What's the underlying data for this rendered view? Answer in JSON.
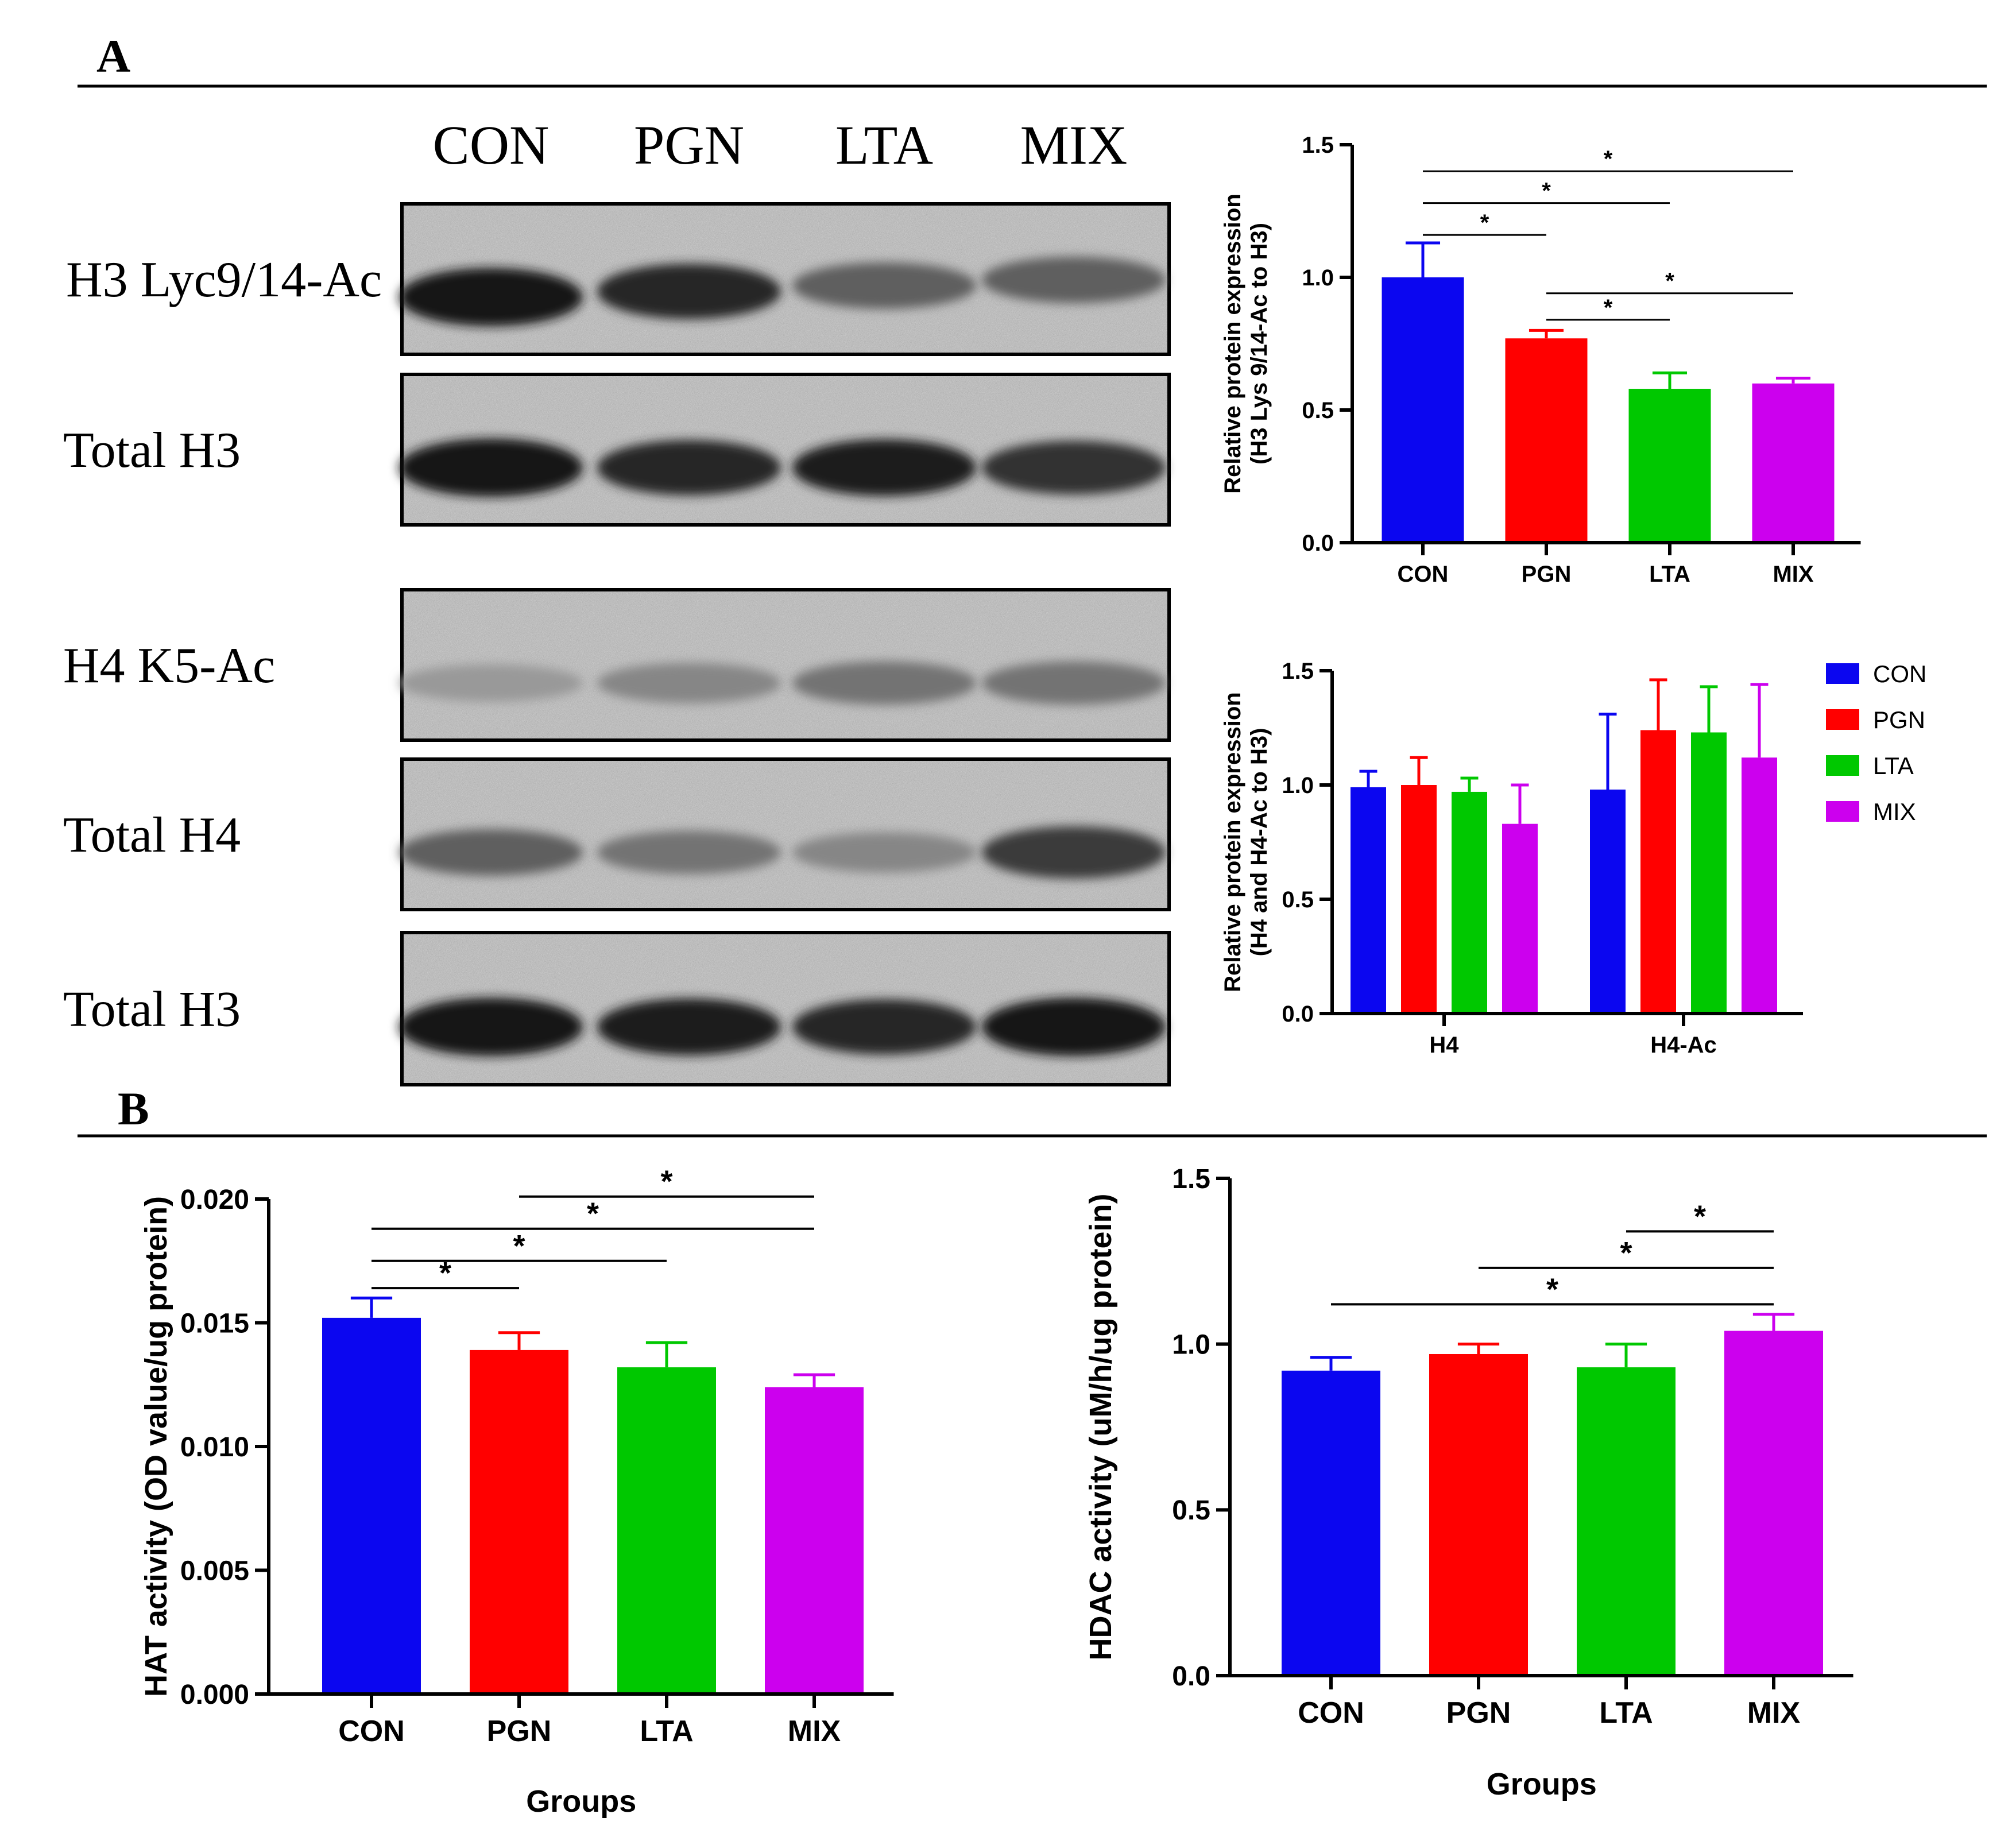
{
  "figure": {
    "panel_a_label": "A",
    "panel_b_label": "B"
  },
  "blot": {
    "lane_labels": [
      "CON",
      "PGN",
      "LTA",
      "MIX"
    ],
    "rows": [
      {
        "label": "H3 Lyc9/14-Ac",
        "intensity": [
          0.95,
          0.85,
          0.55,
          0.55
        ]
      },
      {
        "label": "Total H3",
        "intensity": [
          0.95,
          0.85,
          0.9,
          0.8
        ]
      },
      {
        "label": "H4 K5-Ac",
        "intensity": [
          0.25,
          0.35,
          0.45,
          0.45
        ]
      },
      {
        "label": "Total H4",
        "intensity": [
          0.55,
          0.45,
          0.35,
          0.75
        ]
      },
      {
        "label": "Total H3",
        "intensity": [
          0.95,
          0.9,
          0.85,
          0.95
        ]
      }
    ]
  },
  "colors": {
    "CON": "#0b06f0",
    "PGN": "#ff0000",
    "LTA": "#00c800",
    "MIX": "#cc00ee"
  },
  "chart_data": [
    {
      "id": "h3ac",
      "type": "bar",
      "title": "",
      "xlabel": "",
      "ylabel": "Relative protein expression",
      "ylabel2": "(H3 Lys 9/14-Ac to H3)",
      "categories": [
        "CON",
        "PGN",
        "LTA",
        "MIX"
      ],
      "values": [
        1.0,
        0.77,
        0.58,
        0.6
      ],
      "errors": [
        0.13,
        0.03,
        0.06,
        0.02
      ],
      "ylim": [
        0,
        1.5
      ],
      "yticks": [
        "0.0",
        "0.5",
        "1.0",
        "1.5"
      ],
      "significance": [
        {
          "from": "CON",
          "to": "MIX",
          "label": "*",
          "level": 1.4
        },
        {
          "from": "CON",
          "to": "LTA",
          "label": "*",
          "level": 1.28
        },
        {
          "from": "CON",
          "to": "PGN",
          "label": "*",
          "level": 1.16
        },
        {
          "from": "PGN",
          "to": "MIX",
          "label": "*",
          "level": 0.94
        },
        {
          "from": "PGN",
          "to": "LTA",
          "label": "*",
          "level": 0.84
        }
      ]
    },
    {
      "id": "h4",
      "type": "bar",
      "title": "",
      "xlabel": "",
      "ylabel": "Relative protein expression",
      "ylabel2": "(H4 and H4-Ac to H3)",
      "categories": [
        "H4",
        "H4-Ac"
      ],
      "series": [
        {
          "name": "CON",
          "values": [
            0.99,
            0.98
          ],
          "errors": [
            0.07,
            0.33
          ]
        },
        {
          "name": "PGN",
          "values": [
            1.0,
            1.24
          ],
          "errors": [
            0.12,
            0.22
          ]
        },
        {
          "name": "LTA",
          "values": [
            0.97,
            1.23
          ],
          "errors": [
            0.06,
            0.2
          ]
        },
        {
          "name": "MIX",
          "values": [
            0.83,
            1.12
          ],
          "errors": [
            0.17,
            0.32
          ]
        }
      ],
      "ylim": [
        0,
        1.5
      ],
      "yticks": [
        "0.0",
        "0.5",
        "1.0",
        "1.5"
      ],
      "legend": [
        "CON",
        "PGN",
        "LTA",
        "MIX"
      ],
      "legend_position": "right"
    },
    {
      "id": "hat",
      "type": "bar",
      "title": "",
      "xlabel": "Groups",
      "ylabel": "HAT activity (OD value/ug protein)",
      "categories": [
        "CON",
        "PGN",
        "LTA",
        "MIX"
      ],
      "values": [
        0.0152,
        0.0139,
        0.0132,
        0.0124
      ],
      "errors": [
        0.0008,
        0.0007,
        0.001,
        0.0005
      ],
      "ylim": [
        0,
        0.02
      ],
      "yticks": [
        "0.000",
        "0.005",
        "0.010",
        "0.015",
        "0.020"
      ],
      "significance": [
        {
          "from": "CON",
          "to": "PGN",
          "label": "*",
          "level": 0.0164
        },
        {
          "from": "CON",
          "to": "LTA",
          "label": "*",
          "level": 0.0175
        },
        {
          "from": "CON",
          "to": "MIX",
          "label": "*",
          "level": 0.0188
        },
        {
          "from": "PGN",
          "to": "MIX",
          "label": "*",
          "level": 0.0201
        }
      ]
    },
    {
      "id": "hdac",
      "type": "bar",
      "title": "",
      "xlabel": "Groups",
      "ylabel": "HDAC activity (uM/h/ug protein)",
      "categories": [
        "CON",
        "PGN",
        "LTA",
        "MIX"
      ],
      "values": [
        0.92,
        0.97,
        0.93,
        1.04
      ],
      "errors": [
        0.04,
        0.03,
        0.07,
        0.05
      ],
      "ylim": [
        0,
        1.5
      ],
      "yticks": [
        "0.0",
        "0.5",
        "1.0",
        "1.5"
      ],
      "significance": [
        {
          "from": "CON",
          "to": "MIX",
          "label": "*",
          "level": 1.12
        },
        {
          "from": "PGN",
          "to": "MIX",
          "label": "*",
          "level": 1.23
        },
        {
          "from": "LTA",
          "to": "MIX",
          "label": "*",
          "level": 1.34
        }
      ]
    }
  ]
}
